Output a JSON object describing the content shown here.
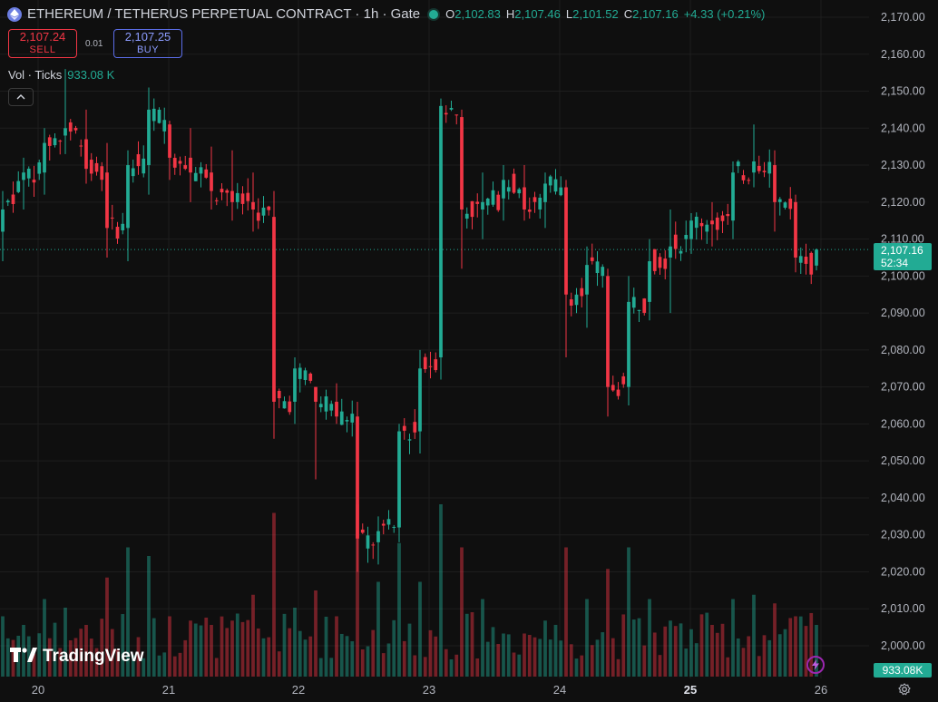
{
  "header": {
    "title": "ETHEREUM / TETHERUS PERPETUAL CONTRACT · 1h · Gate",
    "ohlc": [
      {
        "k": "O",
        "v": "2,102.83"
      },
      {
        "k": "H",
        "v": "2,107.46"
      },
      {
        "k": "L",
        "v": "2,101.52"
      },
      {
        "k": "C",
        "v": "2,107.16"
      }
    ],
    "change": "+4.33 (+0.21%)"
  },
  "trade": {
    "sell_price": "2,107.24",
    "sell_label": "SELL",
    "spread": "0.01",
    "buy_price": "2,107.25",
    "buy_label": "BUY"
  },
  "volume_legend": {
    "label": "Vol · Ticks",
    "value": "933.08 K"
  },
  "brand": {
    "name": "TradingView"
  },
  "last_price": {
    "value": "2,107.16",
    "countdown": "52:34"
  },
  "volume_last": "933.08K",
  "colors": {
    "up": "#22ab94",
    "down": "#f23645",
    "background": "#0f0f0f",
    "grid": "#1e1e1e"
  },
  "icons": {
    "collapse": "chevron-up-icon",
    "symbol": "ethereum-icon",
    "gear": "settings-icon",
    "bolt": "lightning-icon"
  },
  "chart_data": {
    "type": "candlestick",
    "y_axis_labels": [
      "2,170.00",
      "2,160.00",
      "2,150.00",
      "2,140.00",
      "2,130.00",
      "2,120.00",
      "2,110.00",
      "2,100.00",
      "2,090.00",
      "2,080.00",
      "2,070.00",
      "2,060.00",
      "2,050.00",
      "2,040.00",
      "2,030.00",
      "2,020.00",
      "2,010.00",
      "2,000.00"
    ],
    "ylim": [
      1995,
      2173
    ],
    "x_axis_labels": [
      "20",
      "21",
      "22",
      "23",
      "24",
      "25",
      "26"
    ],
    "anchors": [
      {
        "date": "20",
        "o": 2112,
        "h": 2123,
        "l": 2104,
        "c": 2118,
        "v": 140
      },
      {
        "date": "20",
        "o": 2126,
        "h": 2132,
        "l": 2118,
        "c": 2128,
        "v": 120
      },
      {
        "date": "20",
        "o": 2128,
        "h": 2140,
        "l": 2122,
        "c": 2136,
        "v": 180
      },
      {
        "date": "21",
        "o": 2138,
        "h": 2156,
        "l": 2133,
        "c": 2140,
        "v": 160
      },
      {
        "date": "21",
        "o": 2137,
        "h": 2145,
        "l": 2125,
        "c": 2129,
        "v": 120
      },
      {
        "date": "21",
        "o": 2128,
        "h": 2136,
        "l": 2105,
        "c": 2113,
        "v": 230
      },
      {
        "date": "21",
        "o": 2113,
        "h": 2134,
        "l": 2104,
        "c": 2130,
        "v": 300
      },
      {
        "date": "22",
        "o": 2130,
        "h": 2151,
        "l": 2122,
        "c": 2145,
        "v": 280
      },
      {
        "date": "22",
        "o": 2141,
        "h": 2142,
        "l": 2126,
        "c": 2132,
        "v": 140
      },
      {
        "date": "22",
        "o": 2132,
        "h": 2140,
        "l": 2120,
        "c": 2128,
        "v": 130
      },
      {
        "date": "22",
        "o": 2128,
        "h": 2135,
        "l": 2118,
        "c": 2123,
        "v": 120
      },
      {
        "date": "22",
        "o": 2123,
        "h": 2134,
        "l": 2115,
        "c": 2120,
        "v": 130
      },
      {
        "date": "23",
        "o": 2120,
        "h": 2128,
        "l": 2112,
        "c": 2118,
        "v": 190
      },
      {
        "date": "23",
        "o": 2116,
        "h": 2123,
        "l": 2056,
        "c": 2066,
        "v": 380
      },
      {
        "date": "23",
        "o": 2066,
        "h": 2078,
        "l": 2060,
        "c": 2075,
        "v": 160
      },
      {
        "date": "23",
        "o": 2070,
        "h": 2070,
        "l": 2045,
        "c": 2066,
        "v": 200
      },
      {
        "date": "23",
        "o": 2066,
        "h": 2071,
        "l": 2060,
        "c": 2062,
        "v": 140
      },
      {
        "date": "23",
        "o": 2062,
        "h": 2066,
        "l": 2020,
        "c": 2029,
        "v": 400
      },
      {
        "date": "23",
        "o": 2028,
        "h": 2035,
        "l": 2022,
        "c": 2031,
        "v": 220
      },
      {
        "date": "23",
        "o": 2032,
        "h": 2060,
        "l": 2028,
        "c": 2058,
        "v": 310
      },
      {
        "date": "23",
        "o": 2058,
        "h": 2080,
        "l": 2052,
        "c": 2075,
        "v": 220
      },
      {
        "date": "24",
        "o": 2078,
        "h": 2148,
        "l": 2072,
        "c": 2146,
        "v": 400
      },
      {
        "date": "24",
        "o": 2143,
        "h": 2145,
        "l": 2102,
        "c": 2118,
        "v": 300
      },
      {
        "date": "24",
        "o": 2118,
        "h": 2128,
        "l": 2110,
        "c": 2120,
        "v": 180
      },
      {
        "date": "24",
        "o": 2121,
        "h": 2130,
        "l": 2115,
        "c": 2126,
        "v": 100
      },
      {
        "date": "24",
        "o": 2124,
        "h": 2130,
        "l": 2115,
        "c": 2118,
        "v": 100
      },
      {
        "date": "24",
        "o": 2120,
        "h": 2128,
        "l": 2113,
        "c": 2125,
        "v": 130
      },
      {
        "date": "24",
        "o": 2124,
        "h": 2126,
        "l": 2078,
        "c": 2095,
        "v": 300
      },
      {
        "date": "24",
        "o": 2095,
        "h": 2108,
        "l": 2086,
        "c": 2103,
        "v": 180
      },
      {
        "date": "24",
        "o": 2100,
        "h": 2102,
        "l": 2062,
        "c": 2070,
        "v": 250
      },
      {
        "date": "25",
        "o": 2070,
        "h": 2100,
        "l": 2065,
        "c": 2093,
        "v": 300
      },
      {
        "date": "25",
        "o": 2093,
        "h": 2110,
        "l": 2088,
        "c": 2104,
        "v": 180
      },
      {
        "date": "25",
        "o": 2105,
        "h": 2118,
        "l": 2090,
        "c": 2108,
        "v": 130
      },
      {
        "date": "25",
        "o": 2110,
        "h": 2117,
        "l": 2106,
        "c": 2115,
        "v": 110
      },
      {
        "date": "25",
        "o": 2115,
        "h": 2120,
        "l": 2108,
        "c": 2114,
        "v": 120
      },
      {
        "date": "25",
        "o": 2115,
        "h": 2131,
        "l": 2110,
        "c": 2128,
        "v": 180
      },
      {
        "date": "25",
        "o": 2128,
        "h": 2141,
        "l": 2124,
        "c": 2131,
        "v": 190
      },
      {
        "date": "25",
        "o": 2130,
        "h": 2134,
        "l": 2112,
        "c": 2120,
        "v": 170
      },
      {
        "date": "25",
        "o": 2120,
        "h": 2122,
        "l": 2101,
        "c": 2105,
        "v": 140
      },
      {
        "date": "26",
        "o": 2102.83,
        "h": 2107.46,
        "l": 2101.52,
        "c": 2107.16,
        "v": 120
      }
    ]
  }
}
